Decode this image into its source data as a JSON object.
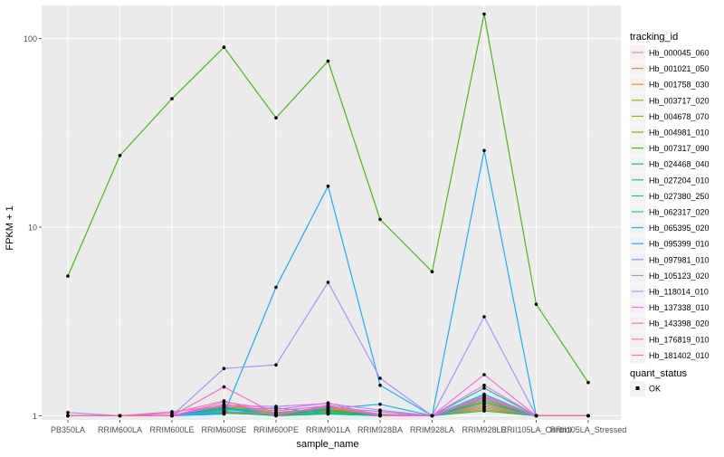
{
  "chart_data": {
    "type": "line",
    "xlabel": "sample_name",
    "ylabel": "FPKM + 1",
    "y_scale": "log10",
    "ylim": [
      0.95,
      150
    ],
    "y_ticks": [
      {
        "value": 1,
        "label": "1"
      },
      {
        "value": 10,
        "label": "10"
      },
      {
        "value": 100,
        "label": "100"
      }
    ],
    "categories": [
      "PB350LA",
      "RRIM600LA",
      "RRIM600LE",
      "RRIM600SE",
      "RRIM600PE",
      "RRIM901LA",
      "RRIM928BA",
      "RRIM928LA",
      "RRIM928LE",
      "RRII105LA_Control",
      "RRII105LA_Stressed"
    ],
    "legend": {
      "title": "tracking_id",
      "position": "right"
    },
    "shape_legend": {
      "title": "quant_status",
      "items": [
        "OK"
      ]
    },
    "series": [
      {
        "name": "Hb_000045_060",
        "color": "#F8766D",
        "values": [
          1.0,
          1.0,
          1.0,
          1.05,
          1.02,
          1.04,
          1.0,
          1.0,
          1.12,
          1.0,
          1.0
        ]
      },
      {
        "name": "Hb_001021_050",
        "color": "#EA8331",
        "values": [
          1.0,
          1.0,
          1.0,
          1.03,
          1.01,
          1.03,
          1.0,
          1.0,
          1.08,
          1.0,
          1.0
        ]
      },
      {
        "name": "Hb_001758_030",
        "color": "#D89000",
        "values": [
          1.0,
          1.0,
          1.0,
          1.12,
          1.03,
          1.08,
          1.02,
          1.0,
          1.2,
          1.0,
          1.0
        ]
      },
      {
        "name": "Hb_003717_020",
        "color": "#C09B00",
        "values": [
          1.0,
          1.0,
          1.0,
          1.08,
          1.02,
          1.06,
          1.0,
          1.0,
          1.16,
          1.0,
          1.0
        ]
      },
      {
        "name": "Hb_004678_070",
        "color": "#A3A500",
        "values": [
          1.0,
          1.0,
          1.0,
          1.06,
          1.0,
          1.05,
          1.0,
          1.0,
          1.1,
          1.0,
          1.0
        ]
      },
      {
        "name": "Hb_004981_010",
        "color": "#7CAE00",
        "values": [
          1.0,
          1.0,
          1.0,
          1.14,
          1.04,
          1.1,
          1.0,
          1.0,
          1.25,
          1.0,
          1.0
        ]
      },
      {
        "name": "Hb_007317_090",
        "color": "#39B600",
        "values": [
          5.5,
          24,
          48,
          90,
          38,
          76,
          11,
          5.8,
          135,
          3.9,
          1.5
        ]
      },
      {
        "name": "Hb_024468_040",
        "color": "#00BB4E",
        "values": [
          1.0,
          1.0,
          1.0,
          1.1,
          1.02,
          1.07,
          1.0,
          1.0,
          1.18,
          1.0,
          1.0
        ]
      },
      {
        "name": "Hb_027204_010",
        "color": "#00BF7D",
        "values": [
          1.0,
          1.0,
          1.0,
          1.04,
          1.0,
          1.02,
          1.0,
          1.0,
          1.06,
          1.0,
          1.0
        ]
      },
      {
        "name": "Hb_027380_250",
        "color": "#00C1A3",
        "values": [
          1.0,
          1.0,
          1.0,
          1.09,
          1.01,
          1.04,
          1.0,
          1.0,
          1.4,
          1.0,
          1.0
        ]
      },
      {
        "name": "Hb_062317_020",
        "color": "#00BFC4",
        "values": [
          1.0,
          1.0,
          1.0,
          1.07,
          1.1,
          1.03,
          1.0,
          1.0,
          1.3,
          1.0,
          1.0
        ]
      },
      {
        "name": "Hb_065395_020",
        "color": "#00B8E5",
        "values": [
          1.0,
          1.0,
          1.0,
          1.11,
          1.02,
          1.09,
          1.15,
          1.0,
          1.22,
          1.0,
          1.0
        ]
      },
      {
        "name": "Hb_095399_010",
        "color": "#00ABFD",
        "values": [
          1.0,
          1.0,
          1.0,
          1.02,
          4.8,
          16.5,
          1.45,
          1.0,
          25.5,
          1.0,
          1.0
        ]
      },
      {
        "name": "Hb_097981_010",
        "color": "#619CFF",
        "values": [
          1.0,
          1.0,
          1.0,
          1.05,
          1.03,
          1.11,
          1.05,
          1.0,
          1.14,
          1.0,
          1.0
        ]
      },
      {
        "name": "Hb_105123_020",
        "color": "#A58AFF",
        "values": [
          1.04,
          1.0,
          1.0,
          1.78,
          1.86,
          5.1,
          1.58,
          1.0,
          3.35,
          1.0,
          1.0
        ]
      },
      {
        "name": "Hb_118014_010",
        "color": "#C77CFF",
        "values": [
          1.0,
          1.0,
          1.0,
          1.18,
          1.08,
          1.17,
          1.0,
          1.0,
          1.28,
          1.0,
          1.0
        ]
      },
      {
        "name": "Hb_137338_010",
        "color": "#E76BF3",
        "values": [
          1.0,
          1.0,
          1.05,
          1.13,
          1.12,
          1.16,
          1.07,
          1.0,
          1.45,
          1.0,
          1.0
        ]
      },
      {
        "name": "Hb_143398_020",
        "color": "#FA62DB",
        "values": [
          1.0,
          1.0,
          1.0,
          1.15,
          1.06,
          1.13,
          1.02,
          1.0,
          1.65,
          1.0,
          1.0
        ]
      },
      {
        "name": "Hb_176819_010",
        "color": "#FF62BC",
        "values": [
          1.0,
          1.0,
          1.0,
          1.42,
          1.02,
          1.12,
          1.0,
          1.0,
          1.26,
          1.0,
          1.0
        ]
      },
      {
        "name": "Hb_181402_010",
        "color": "#FF6C91",
        "values": [
          1.0,
          1.0,
          1.03,
          1.2,
          1.0,
          1.14,
          1.0,
          1.0,
          1.24,
          1.0,
          1.0
        ]
      }
    ],
    "grid": true,
    "panel_background": "#EBEBEB",
    "point_color": "#000000"
  }
}
